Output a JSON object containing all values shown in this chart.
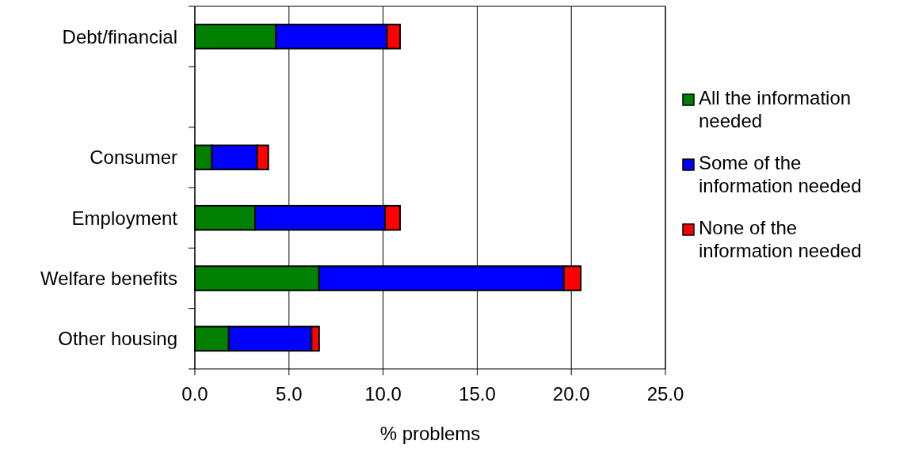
{
  "chart_data": {
    "type": "bar",
    "orientation": "horizontal",
    "stacked": true,
    "categories": [
      "Debt/financial",
      null,
      "Consumer",
      "Employment",
      "Welfare benefits",
      "Other housing"
    ],
    "series": [
      {
        "name": "All the information needed",
        "color": "#008000",
        "values": [
          4.3,
          null,
          0.9,
          3.2,
          6.6,
          1.8
        ]
      },
      {
        "name": "Some of the information needed",
        "color": "#0000ff",
        "values": [
          5.9,
          null,
          2.4,
          6.9,
          13.0,
          4.4
        ]
      },
      {
        "name": "None of the information needed",
        "color": "#ff0000",
        "values": [
          0.7,
          null,
          0.6,
          0.8,
          0.9,
          0.4
        ]
      }
    ],
    "xlim": [
      0,
      25
    ],
    "xticks": [
      {
        "value": 0,
        "label": "0.0"
      },
      {
        "value": 5,
        "label": "5.0"
      },
      {
        "value": 10,
        "label": "10.0"
      },
      {
        "value": 15,
        "label": "15.0"
      },
      {
        "value": 20,
        "label": "20.0"
      },
      {
        "value": 25,
        "label": "25.0"
      }
    ],
    "xlabel": "% problems",
    "grid": "x",
    "legend": "right"
  }
}
